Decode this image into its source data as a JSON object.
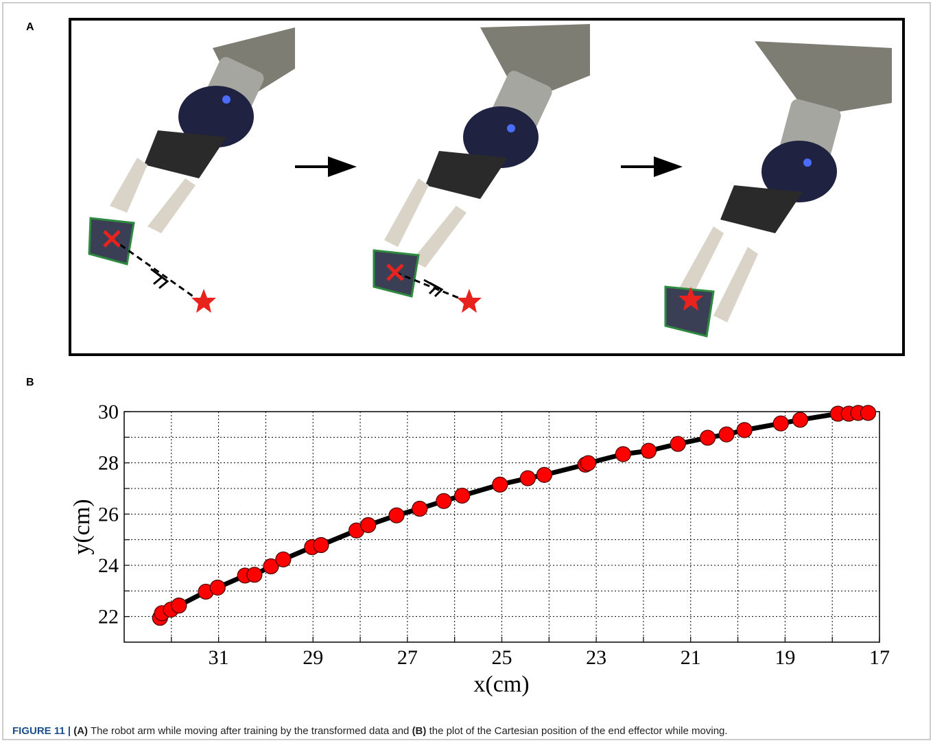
{
  "panel_labels": [
    "A",
    "B"
  ],
  "caption": [
    "FIGURE 11 |",
    "(A)",
    "The robot arm while moving after training by the transformed data and",
    "(B)",
    "the plot of the Cartesian position of the end effector while moving."
  ],
  "chart_data": {
    "type": "line",
    "xlabel": "x(cm)",
    "ylabel": "y(cm)",
    "xlim": [
      33,
      17
    ],
    "ylim": [
      21,
      30
    ],
    "xticks": [
      31,
      29,
      27,
      25,
      23,
      21,
      19,
      17
    ],
    "x_minor_ticks": [
      32,
      30,
      28,
      26,
      24,
      22,
      20,
      18
    ],
    "yticks": [
      22,
      24,
      26,
      28,
      30
    ],
    "y_minor_ticks": [
      23,
      25,
      27,
      29
    ],
    "grid": true,
    "series": [
      {
        "color": "#ff0000",
        "line_color": "#000000",
        "x": [
          32.24,
          32.2,
          32.01,
          31.84,
          31.27,
          31.02,
          30.44,
          30.24,
          29.89,
          29.63,
          29.02,
          28.83,
          28.08,
          27.83,
          27.23,
          26.74,
          26.23,
          25.84,
          25.04,
          24.45,
          24.1,
          23.23,
          23.17,
          22.43,
          21.89,
          21.27,
          20.64,
          20.24,
          19.86,
          19.09,
          18.68,
          17.88,
          17.65,
          17.45,
          17.24
        ],
        "values": [
          21.95,
          22.13,
          22.27,
          22.43,
          22.97,
          23.13,
          23.6,
          23.63,
          23.96,
          24.23,
          24.71,
          24.79,
          25.36,
          25.57,
          25.95,
          26.21,
          26.51,
          26.72,
          27.15,
          27.4,
          27.53,
          27.93,
          27.99,
          28.34,
          28.47,
          28.74,
          28.98,
          29.11,
          29.28,
          29.54,
          29.68,
          29.92,
          29.92,
          29.95,
          29.95
        ]
      }
    ]
  }
}
